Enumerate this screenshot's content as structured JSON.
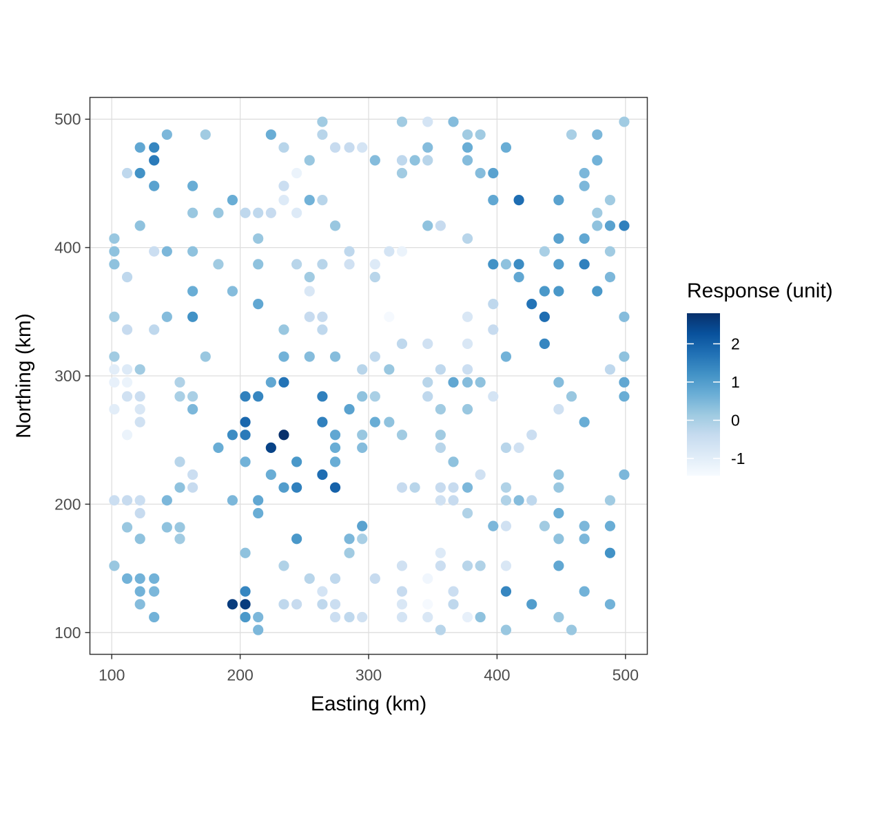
{
  "chart_data": {
    "type": "scatter",
    "title": "",
    "xlabel": "Easting (km)",
    "ylabel": "Northing (km)",
    "xlim": [
      83,
      517
    ],
    "ylim": [
      83,
      517
    ],
    "x_ticks": [
      100,
      200,
      300,
      400,
      500
    ],
    "y_ticks": [
      100,
      200,
      300,
      400,
      500
    ],
    "grid": true,
    "legend": {
      "title": "Response (unit)",
      "placement": "right",
      "range": [
        -1.45,
        2.8
      ],
      "ticks": [
        2,
        1,
        0,
        -1
      ],
      "colors": [
        "#f7fbff",
        "#deebf7",
        "#c6dbef",
        "#9ecae1",
        "#6baed6",
        "#4292c6",
        "#2171b5",
        "#08519c",
        "#08306b"
      ]
    },
    "points": [
      [
        102,
        152,
        0.2
      ],
      [
        112,
        142,
        0.6
      ],
      [
        122,
        142,
        0.6
      ],
      [
        133,
        142,
        0.6
      ],
      [
        122,
        132,
        0.6
      ],
      [
        133,
        132,
        0.5
      ],
      [
        122,
        122,
        0.4
      ],
      [
        133,
        112,
        0.6
      ],
      [
        112,
        182,
        0.2
      ],
      [
        122,
        193,
        -0.4
      ],
      [
        122,
        173,
        0.3
      ],
      [
        102,
        203,
        -0.5
      ],
      [
        112,
        203,
        -0.4
      ],
      [
        122,
        203,
        -0.5
      ],
      [
        143,
        203,
        0.5
      ],
      [
        143,
        182,
        0.3
      ],
      [
        153,
        182,
        0.2
      ],
      [
        153,
        173,
        0.1
      ],
      [
        153,
        213,
        0.3
      ],
      [
        153,
        233,
        -0.2
      ],
      [
        163,
        213,
        -0.4
      ],
      [
        163,
        223,
        -0.5
      ],
      [
        102,
        305,
        -1.0
      ],
      [
        112,
        305,
        -0.9
      ],
      [
        122,
        305,
        0.1
      ],
      [
        102,
        295,
        -1.1
      ],
      [
        112,
        295,
        -1.2
      ],
      [
        112,
        284,
        -0.6
      ],
      [
        122,
        284,
        -0.5
      ],
      [
        102,
        274,
        -1.0
      ],
      [
        122,
        274,
        -0.8
      ],
      [
        122,
        264,
        -0.6
      ],
      [
        112,
        254,
        -1.2
      ],
      [
        102,
        315,
        0.1
      ],
      [
        102,
        346,
        0.1
      ],
      [
        112,
        336,
        -0.4
      ],
      [
        153,
        295,
        -0.1
      ],
      [
        153,
        284,
        0.0
      ],
      [
        163,
        284,
        0.0
      ],
      [
        163,
        274,
        0.5
      ],
      [
        173,
        315,
        0.2
      ],
      [
        133,
        336,
        -0.3
      ],
      [
        143,
        346,
        0.4
      ],
      [
        163,
        346,
        1.2
      ],
      [
        163,
        366,
        0.7
      ],
      [
        102,
        387,
        0.3
      ],
      [
        102,
        397,
        0.3
      ],
      [
        102,
        407,
        0.2
      ],
      [
        112,
        377,
        -0.3
      ],
      [
        133,
        397,
        -0.5
      ],
      [
        143,
        397,
        0.5
      ],
      [
        163,
        397,
        0.3
      ],
      [
        122,
        417,
        0.3
      ],
      [
        163,
        427,
        0.2
      ],
      [
        112,
        458,
        -0.3
      ],
      [
        122,
        458,
        1.2
      ],
      [
        133,
        448,
        0.9
      ],
      [
        163,
        448,
        0.7
      ],
      [
        122,
        478,
        0.8
      ],
      [
        133,
        478,
        1.4
      ],
      [
        133,
        468,
        1.6
      ],
      [
        143,
        488,
        0.5
      ],
      [
        173,
        488,
        0.1
      ],
      [
        183,
        427,
        0.2
      ],
      [
        183,
        387,
        0.1
      ],
      [
        194,
        366,
        0.4
      ],
      [
        194,
        437,
        0.7
      ],
      [
        204,
        427,
        -0.3
      ],
      [
        214,
        427,
        -0.3
      ],
      [
        224,
        427,
        -0.4
      ],
      [
        214,
        407,
        0.2
      ],
      [
        214,
        387,
        0.3
      ],
      [
        214,
        356,
        0.8
      ],
      [
        234,
        478,
        -0.2
      ],
      [
        224,
        488,
        0.7
      ],
      [
        234,
        448,
        -0.5
      ],
      [
        234,
        437,
        -0.9
      ],
      [
        244,
        458,
        -1.2
      ],
      [
        244,
        427,
        -0.9
      ],
      [
        254,
        437,
        0.6
      ],
      [
        264,
        437,
        -0.2
      ],
      [
        254,
        468,
        0.2
      ],
      [
        264,
        488,
        -0.2
      ],
      [
        264,
        498,
        0.1
      ],
      [
        244,
        387,
        -0.2
      ],
      [
        254,
        377,
        0.1
      ],
      [
        254,
        366,
        -0.8
      ],
      [
        264,
        387,
        -0.2
      ],
      [
        274,
        417,
        0.2
      ],
      [
        254,
        346,
        -0.4
      ],
      [
        264,
        346,
        -0.4
      ],
      [
        264,
        336,
        -0.3
      ],
      [
        234,
        336,
        0.2
      ],
      [
        234,
        315,
        0.6
      ],
      [
        254,
        315,
        0.4
      ],
      [
        274,
        315,
        0.4
      ],
      [
        183,
        244,
        0.7
      ],
      [
        194,
        254,
        1.3
      ],
      [
        204,
        264,
        1.9
      ],
      [
        204,
        254,
        1.6
      ],
      [
        204,
        233,
        0.6
      ],
      [
        194,
        203,
        0.5
      ],
      [
        214,
        203,
        0.8
      ],
      [
        214,
        193,
        0.7
      ],
      [
        204,
        284,
        1.5
      ],
      [
        214,
        284,
        1.4
      ],
      [
        224,
        295,
        0.8
      ],
      [
        234,
        295,
        1.7
      ],
      [
        224,
        244,
        2.5
      ],
      [
        234,
        254,
        2.8
      ],
      [
        224,
        223,
        0.7
      ],
      [
        234,
        213,
        1.0
      ],
      [
        244,
        213,
        1.5
      ],
      [
        244,
        233,
        1.1
      ],
      [
        264,
        284,
        1.5
      ],
      [
        264,
        264,
        1.5
      ],
      [
        274,
        254,
        0.8
      ],
      [
        274,
        244,
        0.7
      ],
      [
        274,
        233,
        0.7
      ],
      [
        264,
        223,
        1.8
      ],
      [
        274,
        213,
        2.0
      ],
      [
        194,
        122,
        2.6
      ],
      [
        204,
        122,
        2.6
      ],
      [
        204,
        132,
        1.4
      ],
      [
        204,
        112,
        1.1
      ],
      [
        214,
        112,
        0.5
      ],
      [
        214,
        102,
        0.5
      ],
      [
        204,
        162,
        0.3
      ],
      [
        234,
        152,
        -0.1
      ],
      [
        254,
        142,
        -0.2
      ],
      [
        244,
        173,
        1.1
      ],
      [
        234,
        122,
        -0.3
      ],
      [
        244,
        122,
        -0.4
      ],
      [
        264,
        132,
        -0.7
      ],
      [
        264,
        122,
        -0.3
      ],
      [
        274,
        142,
        -0.3
      ],
      [
        274,
        122,
        -0.5
      ],
      [
        274,
        112,
        -0.5
      ],
      [
        285,
        112,
        -0.3
      ],
      [
        295,
        112,
        -0.6
      ],
      [
        285,
        162,
        0.1
      ],
      [
        285,
        173,
        0.5
      ],
      [
        295,
        173,
        0.0
      ],
      [
        295,
        183,
        0.9
      ],
      [
        285,
        274,
        0.9
      ],
      [
        295,
        284,
        0.3
      ],
      [
        295,
        254,
        0.2
      ],
      [
        295,
        244,
        0.4
      ],
      [
        305,
        264,
        0.7
      ],
      [
        316,
        264,
        0.3
      ],
      [
        305,
        284,
        0.0
      ],
      [
        295,
        305,
        -0.2
      ],
      [
        316,
        305,
        0.2
      ],
      [
        305,
        315,
        -0.3
      ],
      [
        326,
        325,
        -0.3
      ],
      [
        316,
        346,
        -1.4
      ],
      [
        285,
        387,
        -0.6
      ],
      [
        285,
        397,
        -0.3
      ],
      [
        305,
        377,
        -0.2
      ],
      [
        305,
        387,
        -0.9
      ],
      [
        316,
        397,
        -0.7
      ],
      [
        326,
        397,
        -1.2
      ],
      [
        274,
        478,
        -0.4
      ],
      [
        285,
        478,
        -0.4
      ],
      [
        295,
        478,
        -0.7
      ],
      [
        305,
        468,
        0.4
      ],
      [
        326,
        468,
        -0.3
      ],
      [
        326,
        458,
        0.1
      ],
      [
        336,
        468,
        0.3
      ],
      [
        346,
        468,
        -0.2
      ],
      [
        346,
        478,
        0.4
      ],
      [
        326,
        498,
        0.1
      ],
      [
        346,
        498,
        -0.7
      ],
      [
        366,
        498,
        0.4
      ],
      [
        377,
        488,
        0.1
      ],
      [
        387,
        488,
        0.1
      ],
      [
        377,
        478,
        0.7
      ],
      [
        377,
        468,
        0.4
      ],
      [
        387,
        458,
        0.4
      ],
      [
        397,
        458,
        0.9
      ],
      [
        407,
        478,
        0.7
      ],
      [
        397,
        437,
        0.8
      ],
      [
        346,
        417,
        0.3
      ],
      [
        356,
        417,
        -0.4
      ],
      [
        377,
        407,
        -0.2
      ],
      [
        346,
        325,
        -0.6
      ],
      [
        377,
        346,
        -0.8
      ],
      [
        377,
        325,
        -0.8
      ],
      [
        356,
        305,
        -0.3
      ],
      [
        377,
        305,
        -0.5
      ],
      [
        346,
        295,
        -0.2
      ],
      [
        346,
        284,
        -0.3
      ],
      [
        366,
        295,
        0.8
      ],
      [
        377,
        295,
        0.4
      ],
      [
        387,
        295,
        0.3
      ],
      [
        356,
        274,
        0.1
      ],
      [
        377,
        274,
        0.2
      ],
      [
        356,
        254,
        0.1
      ],
      [
        356,
        244,
        -0.2
      ],
      [
        366,
        233,
        0.3
      ],
      [
        326,
        254,
        0.1
      ],
      [
        326,
        213,
        -0.4
      ],
      [
        336,
        213,
        -0.2
      ],
      [
        356,
        213,
        -0.4
      ],
      [
        366,
        213,
        -0.4
      ],
      [
        377,
        213,
        0.5
      ],
      [
        356,
        203,
        -0.6
      ],
      [
        366,
        203,
        -0.4
      ],
      [
        377,
        193,
        -0.1
      ],
      [
        326,
        152,
        -0.6
      ],
      [
        356,
        162,
        -0.9
      ],
      [
        356,
        152,
        -0.5
      ],
      [
        377,
        152,
        -0.2
      ],
      [
        387,
        152,
        -0.1
      ],
      [
        346,
        142,
        -1.3
      ],
      [
        366,
        132,
        -0.5
      ],
      [
        326,
        132,
        -0.4
      ],
      [
        326,
        122,
        -0.8
      ],
      [
        346,
        122,
        -1.4
      ],
      [
        366,
        122,
        -0.3
      ],
      [
        326,
        112,
        -0.7
      ],
      [
        346,
        112,
        -0.8
      ],
      [
        377,
        112,
        -1.1
      ],
      [
        387,
        112,
        0.3
      ],
      [
        356,
        102,
        -0.2
      ],
      [
        305,
        142,
        -0.4
      ],
      [
        387,
        223,
        -0.6
      ],
      [
        397,
        356,
        -0.3
      ],
      [
        397,
        336,
        -0.4
      ],
      [
        397,
        284,
        -0.7
      ],
      [
        397,
        387,
        1.2
      ],
      [
        407,
        387,
        0.3
      ],
      [
        417,
        387,
        1.3
      ],
      [
        417,
        377,
        0.8
      ],
      [
        417,
        437,
        1.8
      ],
      [
        407,
        315,
        0.6
      ],
      [
        407,
        244,
        -0.2
      ],
      [
        417,
        244,
        -0.6
      ],
      [
        407,
        213,
        -0.1
      ],
      [
        407,
        203,
        -0.1
      ],
      [
        417,
        203,
        0.4
      ],
      [
        427,
        203,
        -0.3
      ],
      [
        427,
        254,
        -0.5
      ],
      [
        397,
        183,
        0.5
      ],
      [
        407,
        183,
        -0.6
      ],
      [
        407,
        152,
        -0.8
      ],
      [
        407,
        132,
        1.4
      ],
      [
        427,
        122,
        1.0
      ],
      [
        407,
        102,
        0.2
      ],
      [
        437,
        183,
        0.1
      ],
      [
        448,
        193,
        0.7
      ],
      [
        448,
        173,
        0.3
      ],
      [
        448,
        152,
        0.8
      ],
      [
        448,
        112,
        0.2
      ],
      [
        458,
        102,
        0.2
      ],
      [
        468,
        183,
        0.5
      ],
      [
        468,
        173,
        0.5
      ],
      [
        468,
        132,
        0.6
      ],
      [
        488,
        183,
        0.7
      ],
      [
        488,
        162,
        1.2
      ],
      [
        488,
        122,
        0.6
      ],
      [
        488,
        203,
        0.1
      ],
      [
        448,
        223,
        0.3
      ],
      [
        448,
        213,
        0.2
      ],
      [
        499,
        223,
        0.5
      ],
      [
        468,
        264,
        0.7
      ],
      [
        458,
        284,
        0.2
      ],
      [
        448,
        295,
        0.4
      ],
      [
        448,
        274,
        -0.6
      ],
      [
        488,
        305,
        -0.3
      ],
      [
        499,
        295,
        0.8
      ],
      [
        499,
        284,
        0.7
      ],
      [
        499,
        315,
        0.3
      ],
      [
        499,
        346,
        0.4
      ],
      [
        437,
        325,
        1.4
      ],
      [
        437,
        346,
        1.8
      ],
      [
        427,
        356,
        1.7
      ],
      [
        437,
        366,
        1.1
      ],
      [
        448,
        366,
        1.1
      ],
      [
        478,
        366,
        1.1
      ],
      [
        488,
        377,
        0.5
      ],
      [
        488,
        397,
        0.1
      ],
      [
        437,
        397,
        0.0
      ],
      [
        448,
        387,
        1.0
      ],
      [
        468,
        387,
        1.5
      ],
      [
        448,
        407,
        0.9
      ],
      [
        468,
        407,
        0.8
      ],
      [
        478,
        417,
        0.3
      ],
      [
        488,
        417,
        0.9
      ],
      [
        499,
        417,
        1.5
      ],
      [
        478,
        427,
        0.1
      ],
      [
        488,
        437,
        0.1
      ],
      [
        448,
        437,
        0.9
      ],
      [
        468,
        448,
        0.5
      ],
      [
        468,
        458,
        0.5
      ],
      [
        478,
        468,
        0.6
      ],
      [
        458,
        488,
        0.0
      ],
      [
        478,
        488,
        0.5
      ],
      [
        499,
        498,
        0.1
      ]
    ]
  }
}
